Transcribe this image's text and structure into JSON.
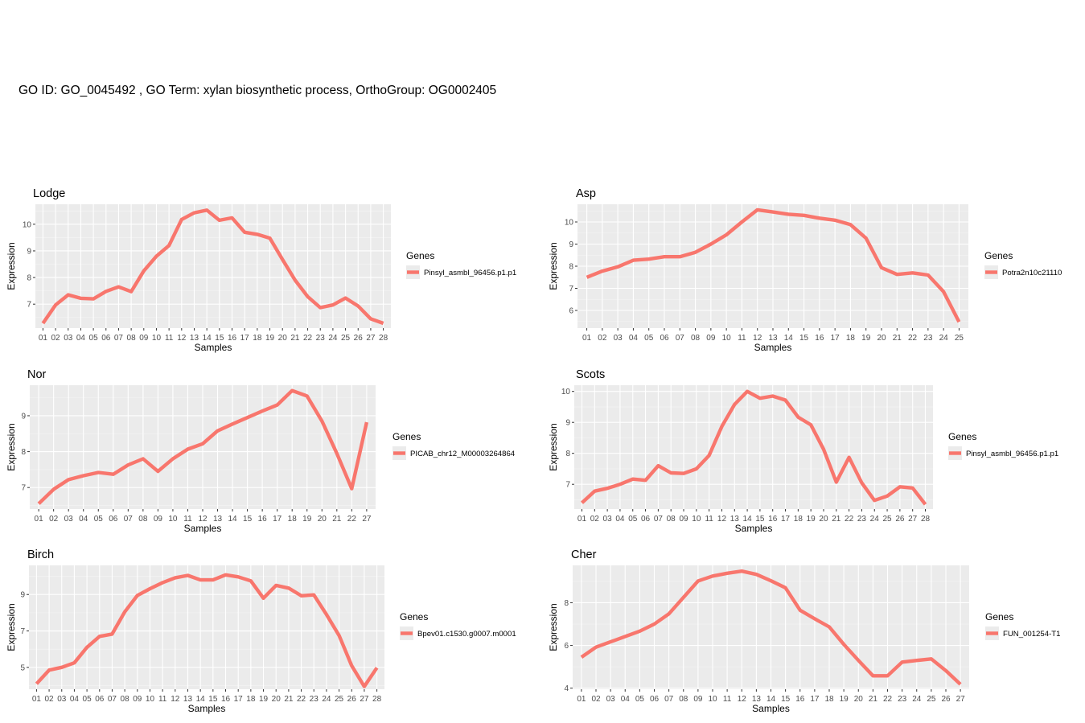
{
  "title": "GO ID: GO_0045492 , GO Term: xylan biosynthetic process, OrthoGroup: OG0002405",
  "colors": {
    "line": "#F8766D",
    "panel": "#EBEBEB",
    "grid_major": "#FFFFFF",
    "tick_text": "#4D4D4D"
  },
  "chart_data": [
    {
      "type": "line",
      "title": "Lodge",
      "xlabel": "Samples",
      "ylabel": "Expression",
      "legend_title": "Genes",
      "legend_position": "right",
      "grid": true,
      "categories": [
        "01",
        "02",
        "03",
        "04",
        "05",
        "06",
        "07",
        "08",
        "09",
        "10",
        "11",
        "12",
        "13",
        "14",
        "15",
        "16",
        "17",
        "18",
        "19",
        "20",
        "21",
        "22",
        "23",
        "24",
        "25",
        "26",
        "27",
        "28"
      ],
      "y_ticks": [
        7,
        8,
        9,
        10
      ],
      "ylim": [
        6.1,
        10.75
      ],
      "series": [
        {
          "name": "Pinsyl_asmbl_96456.p1.p1",
          "values": [
            6.28,
            6.97,
            7.35,
            7.22,
            7.2,
            7.48,
            7.65,
            7.47,
            8.25,
            8.8,
            9.2,
            10.18,
            10.43,
            10.53,
            10.15,
            10.24,
            9.7,
            9.62,
            9.48,
            8.68,
            7.9,
            7.28,
            6.87,
            6.97,
            7.23,
            6.93,
            6.45,
            6.28
          ]
        }
      ]
    },
    {
      "type": "line",
      "title": "Asp",
      "xlabel": "Samples",
      "ylabel": "Expression",
      "legend_title": "Genes",
      "legend_position": "right",
      "grid": true,
      "categories": [
        "01",
        "02",
        "03",
        "04",
        "05",
        "06",
        "07",
        "08",
        "09",
        "10",
        "11",
        "12",
        "13",
        "14",
        "15",
        "16",
        "17",
        "18",
        "19",
        "20",
        "21",
        "22",
        "23",
        "24",
        "25"
      ],
      "y_ticks": [
        6,
        7,
        8,
        9,
        10
      ],
      "ylim": [
        5.2,
        10.8
      ],
      "series": [
        {
          "name": "Potra2n10c21110",
          "values": [
            7.5,
            7.78,
            7.97,
            8.27,
            8.32,
            8.43,
            8.43,
            8.63,
            9.0,
            9.42,
            10.0,
            10.55,
            10.45,
            10.35,
            10.3,
            10.17,
            10.08,
            9.88,
            9.27,
            7.93,
            7.63,
            7.7,
            7.6,
            6.85,
            5.48
          ]
        }
      ]
    },
    {
      "type": "line",
      "title": "Nor",
      "xlabel": "Samples",
      "ylabel": "Expression",
      "legend_title": "Genes",
      "legend_position": "right",
      "grid": true,
      "categories": [
        "01",
        "02",
        "03",
        "04",
        "05",
        "06",
        "07",
        "08",
        "09",
        "10",
        "11",
        "12",
        "13",
        "14",
        "15",
        "16",
        "17",
        "18",
        "19",
        "20",
        "21",
        "22",
        "27"
      ],
      "y_ticks": [
        7,
        8,
        9
      ],
      "ylim": [
        6.4,
        9.85
      ],
      "series": [
        {
          "name": "PICAB_chr12_M00003264864",
          "values": [
            6.55,
            6.95,
            7.22,
            7.33,
            7.42,
            7.37,
            7.63,
            7.8,
            7.45,
            7.8,
            8.07,
            8.22,
            8.58,
            8.77,
            8.95,
            9.13,
            9.3,
            9.7,
            9.55,
            8.85,
            7.95,
            6.97,
            8.82
          ]
        }
      ]
    },
    {
      "type": "line",
      "title": "Scots",
      "xlabel": "Samples",
      "ylabel": "Expression",
      "legend_title": "Genes",
      "legend_position": "right",
      "grid": true,
      "categories": [
        "01",
        "02",
        "03",
        "04",
        "05",
        "06",
        "07",
        "08",
        "09",
        "10",
        "11",
        "12",
        "13",
        "14",
        "15",
        "16",
        "17",
        "18",
        "19",
        "20",
        "21",
        "22",
        "23",
        "24",
        "25",
        "26",
        "27",
        "28"
      ],
      "y_ticks": [
        7,
        8,
        9,
        10
      ],
      "ylim": [
        6.2,
        10.2
      ],
      "series": [
        {
          "name": "Pinsyl_asmbl_96456.p1.p1",
          "values": [
            6.4,
            6.78,
            6.87,
            7.0,
            7.17,
            7.13,
            7.6,
            7.37,
            7.35,
            7.5,
            7.93,
            8.87,
            9.58,
            10.0,
            9.78,
            9.85,
            9.72,
            9.17,
            8.92,
            8.13,
            7.07,
            7.87,
            7.05,
            6.48,
            6.62,
            6.92,
            6.88,
            6.35
          ]
        }
      ]
    },
    {
      "type": "line",
      "title": "Birch",
      "xlabel": "Samples",
      "ylabel": "Expression",
      "legend_title": "Genes",
      "legend_position": "right",
      "grid": true,
      "categories": [
        "01",
        "02",
        "03",
        "04",
        "05",
        "06",
        "07",
        "08",
        "09",
        "10",
        "11",
        "12",
        "13",
        "14",
        "15",
        "16",
        "17",
        "18",
        "19",
        "20",
        "21",
        "22",
        "23",
        "24",
        "25",
        "26",
        "27",
        "28"
      ],
      "y_ticks": [
        5,
        7,
        9
      ],
      "ylim": [
        3.8,
        10.6
      ],
      "series": [
        {
          "name": "Bpev01.c1530.g0007.m0001",
          "values": [
            4.1,
            4.85,
            5.0,
            5.25,
            6.1,
            6.7,
            6.83,
            8.05,
            8.95,
            9.32,
            9.65,
            9.92,
            10.05,
            9.8,
            9.8,
            10.08,
            9.97,
            9.75,
            8.8,
            9.5,
            9.35,
            8.93,
            8.98,
            7.9,
            6.75,
            5.1,
            3.95,
            4.98
          ]
        }
      ]
    },
    {
      "type": "line",
      "title": "Cher",
      "xlabel": "Samples",
      "ylabel": "Expression",
      "legend_title": "Genes",
      "legend_position": "right",
      "grid": true,
      "categories": [
        "01",
        "02",
        "03",
        "04",
        "05",
        "06",
        "07",
        "08",
        "09",
        "10",
        "11",
        "12",
        "13",
        "14",
        "15",
        "16",
        "17",
        "18",
        "19",
        "20",
        "21",
        "22",
        "23",
        "24",
        "25",
        "26",
        "27"
      ],
      "y_ticks": [
        4,
        6,
        8
      ],
      "ylim": [
        3.95,
        9.75
      ],
      "series": [
        {
          "name": "FUN_001254-T1",
          "values": [
            5.45,
            5.92,
            6.17,
            6.42,
            6.67,
            7.0,
            7.48,
            8.25,
            9.02,
            9.25,
            9.38,
            9.48,
            9.33,
            9.03,
            8.7,
            7.65,
            7.25,
            6.87,
            6.05,
            5.3,
            4.58,
            4.58,
            5.22,
            5.3,
            5.37,
            4.82,
            4.18
          ]
        }
      ]
    }
  ]
}
